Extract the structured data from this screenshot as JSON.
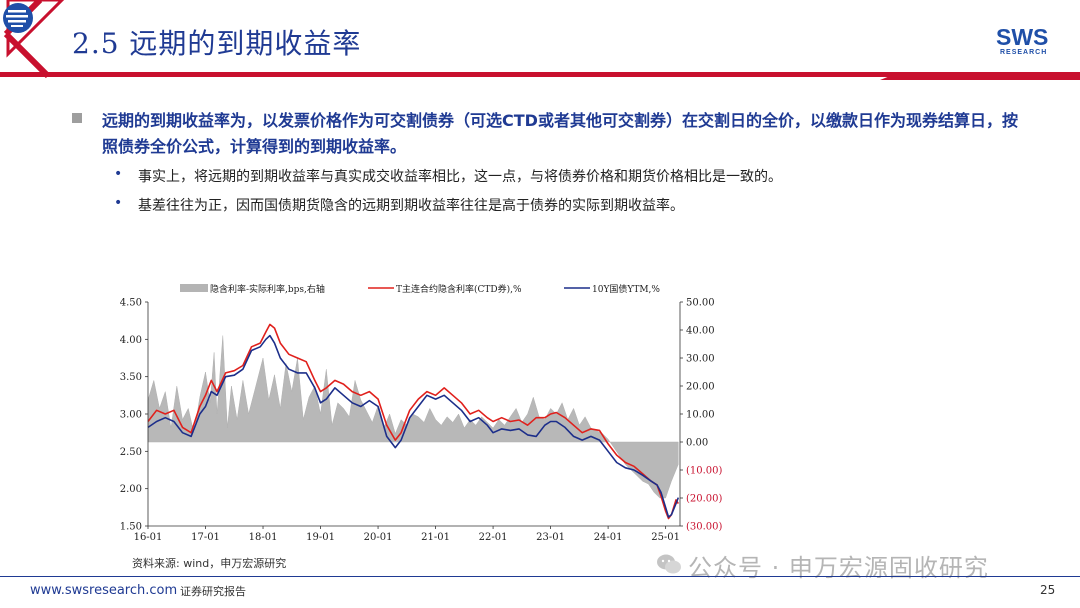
{
  "header": {
    "title": "2.5 远期的到期收益率",
    "logo_text": "SWS",
    "logo_sub": "RESEARCH",
    "accent_color": "#c8102e",
    "title_color": "#1f3a93"
  },
  "content": {
    "main_bullet": "远期的到期收益率为，以发票价格作为可交割债券（可选CTD或者其他可交割券）在交割日的全价，以缴款日作为现券结算日，按照债券全价公式，计算得到的到期收益率。",
    "sub_bullets": [
      "事实上，将远期的到期收益率与真实成交收益率相比，这一点，与将债券价格和期货价格相比是一致的。",
      "基差往往为正，因而国债期货隐含的远期到期收益率往往是高于债券的实际到期收益率。"
    ]
  },
  "chart_data": {
    "type": "line",
    "x_ticks": [
      "16-01",
      "17-01",
      "18-01",
      "19-01",
      "20-01",
      "21-01",
      "22-01",
      "23-01",
      "24-01",
      "25-01"
    ],
    "x_label": "",
    "y_label": "",
    "ylim_left": [
      1.5,
      4.5
    ],
    "yticks_left": [
      "1.50",
      "2.00",
      "2.50",
      "3.00",
      "3.50",
      "4.00",
      "4.50"
    ],
    "ylim_right": [
      -30,
      50
    ],
    "yticks_right": [
      "(30.00)",
      "(20.00)",
      "(10.00)",
      "0.00",
      "10.00",
      "20.00",
      "30.00",
      "40.00",
      "50.00"
    ],
    "legend": [
      {
        "name": "隐含利率-实际利率,bps,右轴",
        "color": "#b4b4b4",
        "kind": "area"
      },
      {
        "name": "T主连合约隐含利率(CTD券),%",
        "color": "#e0201c",
        "kind": "line"
      },
      {
        "name": "10Y国债YTM,%",
        "color": "#1c2e8a",
        "kind": "line"
      }
    ],
    "series": [
      {
        "name": "T主连合约隐含利率(CTD券),%",
        "axis": "left",
        "points": [
          [
            2016.0,
            2.9
          ],
          [
            2016.15,
            3.05
          ],
          [
            2016.3,
            3.0
          ],
          [
            2016.45,
            3.05
          ],
          [
            2016.6,
            2.82
          ],
          [
            2016.75,
            2.75
          ],
          [
            2016.9,
            3.1
          ],
          [
            2017.0,
            3.25
          ],
          [
            2017.1,
            3.45
          ],
          [
            2017.2,
            3.3
          ],
          [
            2017.35,
            3.55
          ],
          [
            2017.5,
            3.58
          ],
          [
            2017.65,
            3.65
          ],
          [
            2017.8,
            3.9
          ],
          [
            2017.95,
            3.95
          ],
          [
            2018.05,
            4.1
          ],
          [
            2018.12,
            4.2
          ],
          [
            2018.2,
            4.15
          ],
          [
            2018.3,
            3.95
          ],
          [
            2018.45,
            3.8
          ],
          [
            2018.6,
            3.75
          ],
          [
            2018.75,
            3.7
          ],
          [
            2018.9,
            3.45
          ],
          [
            2019.0,
            3.3
          ],
          [
            2019.1,
            3.35
          ],
          [
            2019.25,
            3.45
          ],
          [
            2019.4,
            3.4
          ],
          [
            2019.55,
            3.3
          ],
          [
            2019.7,
            3.25
          ],
          [
            2019.85,
            3.3
          ],
          [
            2020.0,
            3.2
          ],
          [
            2020.15,
            2.85
          ],
          [
            2020.3,
            2.65
          ],
          [
            2020.4,
            2.75
          ],
          [
            2020.55,
            3.05
          ],
          [
            2020.7,
            3.2
          ],
          [
            2020.85,
            3.3
          ],
          [
            2021.0,
            3.25
          ],
          [
            2021.15,
            3.35
          ],
          [
            2021.3,
            3.25
          ],
          [
            2021.45,
            3.15
          ],
          [
            2021.6,
            3.0
          ],
          [
            2021.75,
            3.05
          ],
          [
            2021.9,
            2.95
          ],
          [
            2022.0,
            2.9
          ],
          [
            2022.15,
            2.95
          ],
          [
            2022.3,
            2.9
          ],
          [
            2022.45,
            2.92
          ],
          [
            2022.6,
            2.85
          ],
          [
            2022.75,
            2.95
          ],
          [
            2022.9,
            2.95
          ],
          [
            2023.0,
            3.0
          ],
          [
            2023.1,
            3.02
          ],
          [
            2023.25,
            2.95
          ],
          [
            2023.4,
            2.85
          ],
          [
            2023.55,
            2.75
          ],
          [
            2023.7,
            2.8
          ],
          [
            2023.85,
            2.78
          ],
          [
            2024.0,
            2.6
          ],
          [
            2024.15,
            2.45
          ],
          [
            2024.3,
            2.35
          ],
          [
            2024.45,
            2.3
          ],
          [
            2024.6,
            2.2
          ],
          [
            2024.75,
            2.1
          ],
          [
            2024.85,
            2.05
          ],
          [
            2024.92,
            1.9
          ],
          [
            2025.0,
            1.7
          ],
          [
            2025.05,
            1.6
          ],
          [
            2025.1,
            1.65
          ],
          [
            2025.18,
            1.85
          ],
          [
            2025.22,
            1.8
          ]
        ]
      },
      {
        "name": "10Y国债YTM,%",
        "axis": "left",
        "points": [
          [
            2016.0,
            2.82
          ],
          [
            2016.15,
            2.9
          ],
          [
            2016.3,
            2.95
          ],
          [
            2016.45,
            2.9
          ],
          [
            2016.6,
            2.75
          ],
          [
            2016.75,
            2.7
          ],
          [
            2016.9,
            3.0
          ],
          [
            2017.0,
            3.1
          ],
          [
            2017.1,
            3.3
          ],
          [
            2017.2,
            3.25
          ],
          [
            2017.35,
            3.5
          ],
          [
            2017.5,
            3.52
          ],
          [
            2017.65,
            3.6
          ],
          [
            2017.8,
            3.85
          ],
          [
            2017.95,
            3.9
          ],
          [
            2018.05,
            4.0
          ],
          [
            2018.12,
            4.05
          ],
          [
            2018.2,
            3.95
          ],
          [
            2018.3,
            3.75
          ],
          [
            2018.45,
            3.6
          ],
          [
            2018.6,
            3.55
          ],
          [
            2018.75,
            3.55
          ],
          [
            2018.9,
            3.35
          ],
          [
            2019.0,
            3.15
          ],
          [
            2019.1,
            3.2
          ],
          [
            2019.25,
            3.35
          ],
          [
            2019.4,
            3.25
          ],
          [
            2019.55,
            3.15
          ],
          [
            2019.7,
            3.1
          ],
          [
            2019.85,
            3.18
          ],
          [
            2020.0,
            3.1
          ],
          [
            2020.15,
            2.7
          ],
          [
            2020.3,
            2.55
          ],
          [
            2020.4,
            2.65
          ],
          [
            2020.55,
            2.95
          ],
          [
            2020.7,
            3.1
          ],
          [
            2020.85,
            3.25
          ],
          [
            2021.0,
            3.2
          ],
          [
            2021.15,
            3.25
          ],
          [
            2021.3,
            3.15
          ],
          [
            2021.45,
            3.05
          ],
          [
            2021.6,
            2.9
          ],
          [
            2021.75,
            2.95
          ],
          [
            2021.9,
            2.85
          ],
          [
            2022.0,
            2.75
          ],
          [
            2022.15,
            2.8
          ],
          [
            2022.3,
            2.78
          ],
          [
            2022.45,
            2.8
          ],
          [
            2022.6,
            2.72
          ],
          [
            2022.75,
            2.7
          ],
          [
            2022.9,
            2.85
          ],
          [
            2023.0,
            2.9
          ],
          [
            2023.1,
            2.9
          ],
          [
            2023.25,
            2.82
          ],
          [
            2023.4,
            2.7
          ],
          [
            2023.55,
            2.65
          ],
          [
            2023.7,
            2.7
          ],
          [
            2023.85,
            2.65
          ],
          [
            2024.0,
            2.5
          ],
          [
            2024.15,
            2.35
          ],
          [
            2024.3,
            2.28
          ],
          [
            2024.45,
            2.25
          ],
          [
            2024.6,
            2.18
          ],
          [
            2024.75,
            2.1
          ],
          [
            2024.85,
            2.05
          ],
          [
            2024.92,
            1.95
          ],
          [
            2025.0,
            1.75
          ],
          [
            2025.05,
            1.62
          ],
          [
            2025.1,
            1.65
          ],
          [
            2025.18,
            1.8
          ],
          [
            2025.22,
            1.88
          ]
        ]
      },
      {
        "name": "隐含利率-实际利率,bps,右轴",
        "axis": "right",
        "points": [
          [
            2016.0,
            15
          ],
          [
            2016.1,
            22
          ],
          [
            2016.2,
            12
          ],
          [
            2016.3,
            18
          ],
          [
            2016.4,
            5
          ],
          [
            2016.5,
            20
          ],
          [
            2016.6,
            8
          ],
          [
            2016.7,
            12
          ],
          [
            2016.8,
            3
          ],
          [
            2016.9,
            16
          ],
          [
            2017.0,
            25
          ],
          [
            2017.08,
            14
          ],
          [
            2017.15,
            32
          ],
          [
            2017.2,
            10
          ],
          [
            2017.3,
            38
          ],
          [
            2017.38,
            5
          ],
          [
            2017.45,
            20
          ],
          [
            2017.55,
            8
          ],
          [
            2017.65,
            22
          ],
          [
            2017.75,
            10
          ],
          [
            2017.85,
            18
          ],
          [
            2018.0,
            30
          ],
          [
            2018.1,
            15
          ],
          [
            2018.2,
            24
          ],
          [
            2018.3,
            12
          ],
          [
            2018.4,
            28
          ],
          [
            2018.5,
            18
          ],
          [
            2018.6,
            30
          ],
          [
            2018.7,
            8
          ],
          [
            2018.8,
            16
          ],
          [
            2018.9,
            20
          ],
          [
            2019.0,
            10
          ],
          [
            2019.1,
            26
          ],
          [
            2019.2,
            6
          ],
          [
            2019.3,
            14
          ],
          [
            2019.4,
            12
          ],
          [
            2019.5,
            9
          ],
          [
            2019.6,
            22
          ],
          [
            2019.7,
            15
          ],
          [
            2019.8,
            11
          ],
          [
            2019.9,
            7
          ],
          [
            2020.0,
            13
          ],
          [
            2020.1,
            5
          ],
          [
            2020.2,
            10
          ],
          [
            2020.3,
            3
          ],
          [
            2020.4,
            8
          ],
          [
            2020.5,
            6
          ],
          [
            2020.6,
            10
          ],
          [
            2020.7,
            9
          ],
          [
            2020.8,
            7
          ],
          [
            2020.9,
            12
          ],
          [
            2021.0,
            8
          ],
          [
            2021.1,
            6
          ],
          [
            2021.2,
            9
          ],
          [
            2021.3,
            7
          ],
          [
            2021.4,
            10
          ],
          [
            2021.5,
            5
          ],
          [
            2021.6,
            8
          ],
          [
            2021.7,
            6
          ],
          [
            2021.8,
            9
          ],
          [
            2021.9,
            7
          ],
          [
            2022.0,
            5
          ],
          [
            2022.1,
            8
          ],
          [
            2022.2,
            6
          ],
          [
            2022.3,
            9
          ],
          [
            2022.4,
            12
          ],
          [
            2022.5,
            7
          ],
          [
            2022.6,
            10
          ],
          [
            2022.7,
            16
          ],
          [
            2022.8,
            9
          ],
          [
            2022.9,
            8
          ],
          [
            2023.0,
            12
          ],
          [
            2023.1,
            10
          ],
          [
            2023.2,
            14
          ],
          [
            2023.3,
            8
          ],
          [
            2023.4,
            12
          ],
          [
            2023.5,
            6
          ],
          [
            2023.6,
            9
          ],
          [
            2023.7,
            5
          ],
          [
            2023.8,
            4
          ],
          [
            2023.9,
            3
          ],
          [
            2024.0,
            1
          ],
          [
            2024.1,
            -2
          ],
          [
            2024.2,
            -5
          ],
          [
            2024.3,
            -8
          ],
          [
            2024.4,
            -10
          ],
          [
            2024.5,
            -12
          ],
          [
            2024.6,
            -14
          ],
          [
            2024.7,
            -15
          ],
          [
            2024.8,
            -18
          ],
          [
            2024.9,
            -20
          ],
          [
            2025.0,
            -20
          ],
          [
            2025.1,
            -14
          ],
          [
            2025.22,
            -8
          ]
        ]
      }
    ]
  },
  "source": "资料来源: wind，申万宏源研究",
  "watermark": "公众号 · 申万宏源固收研究",
  "footer": {
    "url": "www.swsresearch.com",
    "label": "证券研究报告",
    "page_number": "25"
  }
}
